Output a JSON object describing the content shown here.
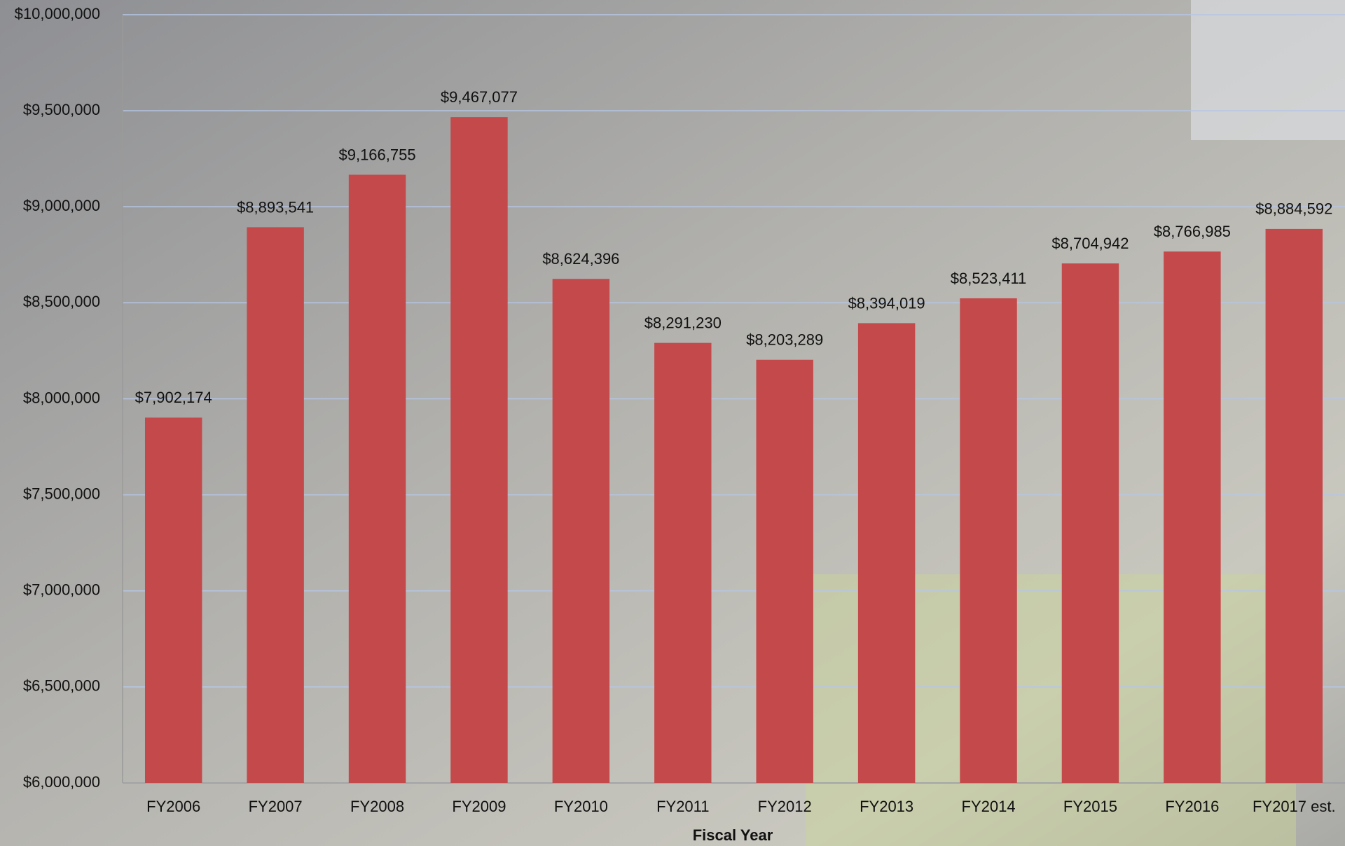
{
  "chart_data": {
    "type": "bar",
    "x_label": "Fiscal Year",
    "categories": [
      "FY2006",
      "FY2007",
      "FY2008",
      "FY2009",
      "FY2010",
      "FY2011",
      "FY2012",
      "FY2013",
      "FY2014",
      "FY2015",
      "FY2016",
      "FY2017 est."
    ],
    "values": [
      7902174,
      8893541,
      9166755,
      9467077,
      8624396,
      8291230,
      8203289,
      8394019,
      8523411,
      8704942,
      8766985,
      8884592
    ],
    "value_labels": [
      "$7,902,174",
      "$8,893,541",
      "$9,166,755",
      "$9,467,077",
      "$8,624,396",
      "$8,291,230",
      "$8,203,289",
      "$8,394,019",
      "$8,523,411",
      "$8,704,942",
      "$8,766,985",
      "$8,884,592"
    ],
    "color": "#c4494a",
    "ylim": [
      6000000,
      10000000
    ],
    "yticks": [
      {
        "value": 6000000,
        "label": "$6,000,000"
      },
      {
        "value": 6500000,
        "label": "$6,500,000"
      },
      {
        "value": 7000000,
        "label": "$7,000,000"
      },
      {
        "value": 7500000,
        "label": "$7,500,000"
      },
      {
        "value": 8000000,
        "label": "$8,000,000"
      },
      {
        "value": 8500000,
        "label": "$8,500,000"
      },
      {
        "value": 9000000,
        "label": "$9,000,000"
      },
      {
        "value": 9500000,
        "label": "$9,500,000"
      },
      {
        "value": 10000000,
        "label": "$10,000,000"
      }
    ],
    "grid": true
  }
}
